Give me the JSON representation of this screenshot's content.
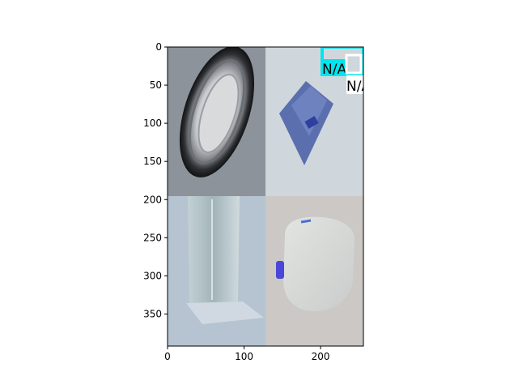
{
  "chart_data": {
    "type": "image",
    "xlabel": "",
    "ylabel": "",
    "xlim": [
      0,
      256
    ],
    "ylim": [
      392,
      0
    ],
    "x_ticks": [
      0,
      100,
      200
    ],
    "y_ticks": [
      0,
      50,
      100,
      150,
      200,
      250,
      300,
      350
    ],
    "tiles": [
      {
        "name": "tile-tin-can-lid",
        "x0": 0,
        "x1": 128,
        "y0": 0,
        "y1": 196
      },
      {
        "name": "tile-blue-carton",
        "x0": 128,
        "x1": 256,
        "y0": 0,
        "y1": 196
      },
      {
        "name": "tile-glass-bottle",
        "x0": 0,
        "x1": 128,
        "y0": 196,
        "y1": 392
      },
      {
        "name": "tile-plastic-jug",
        "x0": 128,
        "x1": 256,
        "y0": 196,
        "y1": 392
      }
    ],
    "annotations": [
      {
        "name": "annotation-na-1",
        "text": "N/A",
        "x": 200,
        "y": 26,
        "box_color": "#00e5ee"
      },
      {
        "name": "annotation-na-2",
        "text": "N/A",
        "x": 234,
        "y": 50,
        "box_color": "#ffffff"
      }
    ]
  }
}
